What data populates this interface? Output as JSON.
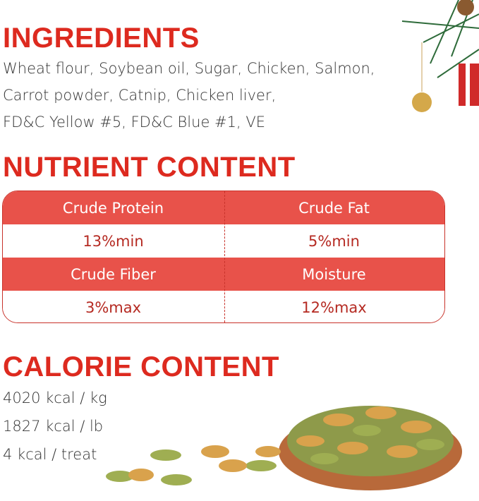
{
  "ingredients": {
    "title": "INGREDIENTS",
    "lines": [
      "Wheat flour, Soybean oil, Sugar, Chicken, Salmon,",
      "Carrot powder, Catnip, Chicken liver,",
      "FD&C Yellow #5, FD&C Blue #1, VE"
    ]
  },
  "nutrient": {
    "title": "NUTRIENT CONTENT",
    "rows": [
      {
        "type": "header",
        "cells": [
          "Crude Protein",
          "Crude Fat"
        ]
      },
      {
        "type": "value",
        "cells": [
          "13%min",
          "5%min"
        ]
      },
      {
        "type": "header",
        "cells": [
          "Crude Fiber",
          "Moisture"
        ]
      },
      {
        "type": "value",
        "cells": [
          "3%max",
          "12%max"
        ]
      }
    ]
  },
  "calorie": {
    "title": "CALORIE CONTENT",
    "lines": [
      "4020 kcal / kg",
      "1827 kcal / lb",
      "4 kcal / treat"
    ]
  },
  "colors": {
    "heading": "#dd2a1f",
    "table_header": "#e8524a",
    "value_text": "#b52a22"
  },
  "images": [
    "christmas-ornament-decoration",
    "fish-shaped-cat-treats-in-wooden-bowl"
  ]
}
